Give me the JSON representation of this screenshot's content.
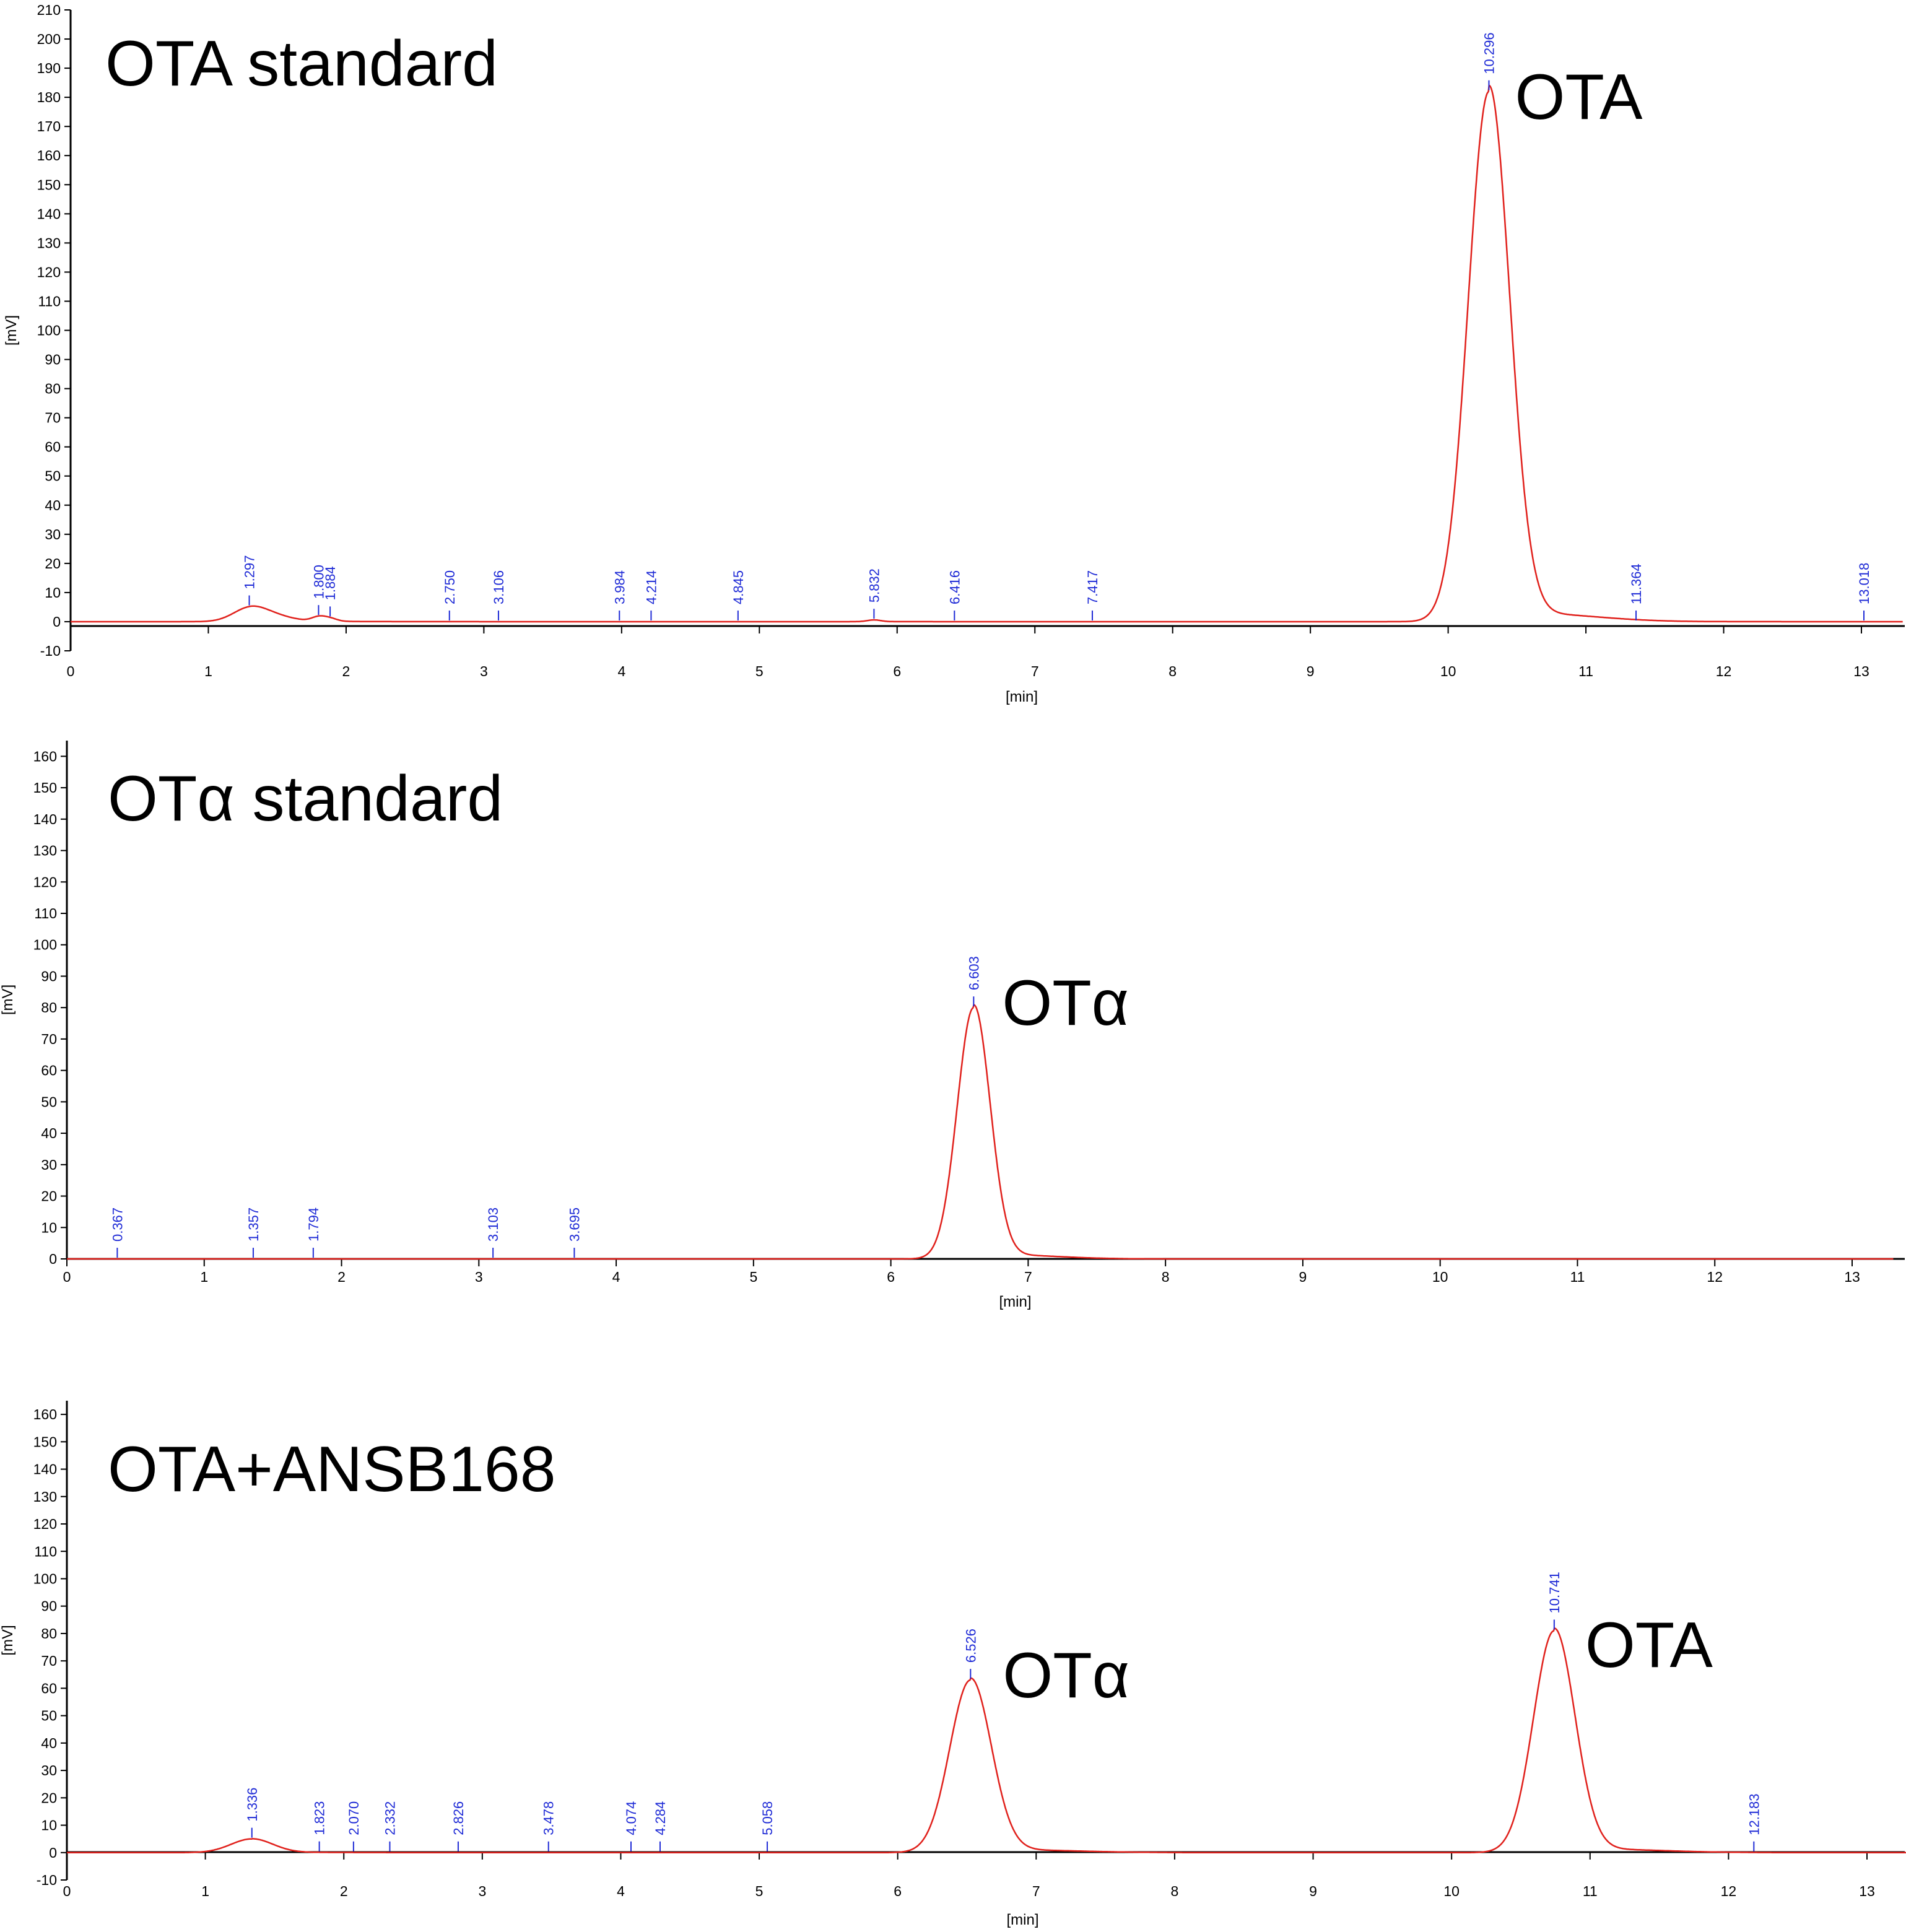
{
  "chart_data": [
    {
      "type": "line",
      "title": "OTA standard",
      "xlabel": "[min]",
      "ylabel": "[mV]",
      "xlim": [
        0,
        13.3
      ],
      "ylim": [
        -10,
        210
      ],
      "xticks": [
        0,
        1,
        2,
        3,
        4,
        5,
        6,
        7,
        8,
        9,
        10,
        11,
        12,
        13
      ],
      "yticks": [
        -10,
        0,
        10,
        20,
        30,
        40,
        50,
        60,
        70,
        80,
        90,
        100,
        110,
        120,
        130,
        140,
        150,
        160,
        170,
        180,
        190,
        200,
        210
      ],
      "line_color": "#e0201b",
      "marker_color": "#1f2bd6",
      "series": [
        {
          "name": "signal",
          "peaks": [
            {
              "rt": 1.297,
              "height": 4,
              "width": 0.12
            },
            {
              "rt": 1.45,
              "height": 2,
              "width": 0.15
            },
            {
              "rt": 1.8,
              "height": 1.5,
              "width": 0.05
            },
            {
              "rt": 1.884,
              "height": 1,
              "width": 0.05
            },
            {
              "rt": 5.832,
              "height": 0.6,
              "width": 0.05
            },
            {
              "rt": 10.296,
              "height": 182,
              "width": 0.15
            }
          ]
        }
      ],
      "peak_markers": [
        "1.297",
        "1.800",
        "1.884",
        "2.750",
        "3.106",
        "3.984",
        "4.214",
        "4.845",
        "5.832",
        "6.416",
        "7.417",
        "10.296",
        "11.364",
        "13.018"
      ],
      "annotations": [
        {
          "text": "OTA",
          "x": 10.296,
          "y": 182
        }
      ]
    },
    {
      "type": "line",
      "title": "OTα standard",
      "xlabel": "[min]",
      "ylabel": "[mV]",
      "xlim": [
        0,
        13.3
      ],
      "ylim": [
        0,
        165
      ],
      "xticks": [
        0,
        1,
        2,
        3,
        4,
        5,
        6,
        7,
        8,
        9,
        10,
        11,
        12,
        13
      ],
      "yticks": [
        0,
        10,
        20,
        30,
        40,
        50,
        60,
        70,
        80,
        90,
        100,
        110,
        120,
        130,
        140,
        150,
        160
      ],
      "line_color": "#e0201b",
      "marker_color": "#1f2bd6",
      "series": [
        {
          "name": "signal",
          "peaks": [
            {
              "rt": 6.603,
              "height": 80,
              "width": 0.12
            }
          ]
        }
      ],
      "peak_markers": [
        "0.367",
        "1.357",
        "1.794",
        "3.103",
        "3.695",
        "6.603"
      ],
      "annotations": [
        {
          "text": "OTα",
          "x": 6.603,
          "y": 80
        }
      ]
    },
    {
      "type": "line",
      "title": "OTA+ANSB168",
      "xlabel": "[min]",
      "ylabel": "[mV]",
      "xlim": [
        0,
        13.3
      ],
      "ylim": [
        -10,
        165
      ],
      "xticks": [
        0,
        1,
        2,
        3,
        4,
        5,
        6,
        7,
        8,
        9,
        10,
        11,
        12,
        13
      ],
      "yticks": [
        -10,
        0,
        10,
        20,
        30,
        40,
        50,
        60,
        70,
        80,
        90,
        100,
        110,
        120,
        130,
        140,
        150,
        160
      ],
      "line_color": "#e0201b",
      "marker_color": "#1f2bd6",
      "series": [
        {
          "name": "signal",
          "peaks": [
            {
              "rt": 1.336,
              "height": 5,
              "width": 0.15
            },
            {
              "rt": 6.526,
              "height": 63,
              "width": 0.15
            },
            {
              "rt": 10.741,
              "height": 81,
              "width": 0.15
            }
          ]
        }
      ],
      "peak_markers": [
        "1.336",
        "1.823",
        "2.070",
        "2.332",
        "2.826",
        "3.478",
        "4.074",
        "4.284",
        "5.058",
        "6.526",
        "10.741",
        "12.183"
      ],
      "annotations": [
        {
          "text": "OTα",
          "x": 6.526,
          "y": 63
        },
        {
          "text": "OTA",
          "x": 10.741,
          "y": 81
        }
      ]
    }
  ]
}
